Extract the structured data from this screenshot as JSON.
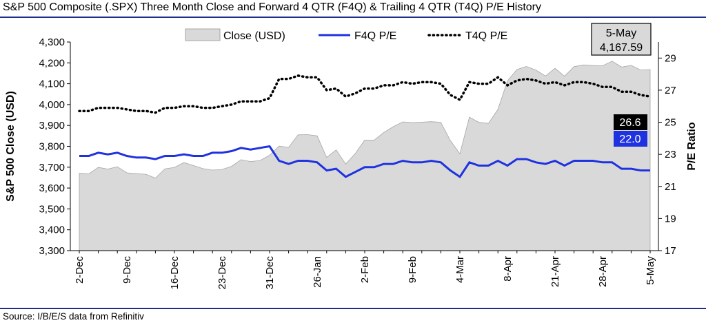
{
  "title": "S&P 500 Composite (.SPX) Three Month Close and Forward 4 QTR (F4Q) & Trailing 4 QTR (T4Q) P/E History",
  "source": "Source: I/B/E/S data from Refinitiv",
  "colors": {
    "area_fill": "#d9d9d9",
    "area_stroke": "#a6a6a6",
    "f4q": "#1f32e0",
    "t4q": "#000000",
    "rule": "#1c2f8f"
  },
  "chart_data": {
    "type": "line",
    "ylabel_left": "S&P 500 Close (USD)",
    "ylabel_right": "P/E Ratio",
    "ylim_left": [
      3300,
      4300
    ],
    "ylim_right": [
      17,
      30
    ],
    "yticks_left": [
      "3,300",
      "3,400",
      "3,500",
      "3,600",
      "3,700",
      "3,800",
      "3,900",
      "4,000",
      "4,100",
      "4,200",
      "4,300"
    ],
    "yticks_right": [
      "17",
      "19",
      "21",
      "23",
      "25",
      "27",
      "29"
    ],
    "xtick_labels": [
      "2-Dec",
      "9-Dec",
      "16-Dec",
      "23-Dec",
      "31-Dec",
      "26-Jan",
      "2-Feb",
      "9-Feb",
      "4-Mar",
      "8-Apr",
      "21-Apr",
      "28-Apr",
      "5-May"
    ],
    "legend": [
      "Close (USD)",
      "F4Q P/E",
      "T4Q P/E"
    ],
    "annotation": {
      "date": "5-May",
      "value": "4,167.59"
    },
    "end_labels": {
      "t4q": "26.6",
      "f4q": "22.0"
    },
    "series": [
      {
        "name": "Close (USD)",
        "kind": "area",
        "values": [
          3671,
          3668,
          3699,
          3691,
          3702,
          3673,
          3669,
          3666,
          3648,
          3692,
          3699,
          3722,
          3708,
          3693,
          3686,
          3689,
          3704,
          3736,
          3727,
          3732,
          3757,
          3801,
          3795,
          3855,
          3856,
          3850,
          3747,
          3783,
          3715,
          3765,
          3830,
          3830,
          3866,
          3894,
          3917,
          3914,
          3916,
          3918,
          3915,
          3828,
          3764,
          3940,
          3915,
          3910,
          3977,
          4114,
          4168,
          4183,
          4165,
          4137,
          4174,
          4136,
          4182,
          4190,
          4187,
          4186,
          4208,
          4180,
          4188,
          4166,
          4168
        ]
      },
      {
        "name": "F4Q P/E",
        "kind": "line",
        "values": [
          22.9,
          22.9,
          23.1,
          23.0,
          23.1,
          22.9,
          22.8,
          22.8,
          22.7,
          22.9,
          22.9,
          23.0,
          22.9,
          22.9,
          23.1,
          23.1,
          23.2,
          23.4,
          23.3,
          23.4,
          23.5,
          22.6,
          22.4,
          22.6,
          22.6,
          22.5,
          22.0,
          22.1,
          21.6,
          21.9,
          22.2,
          22.2,
          22.4,
          22.4,
          22.6,
          22.5,
          22.5,
          22.6,
          22.5,
          22.0,
          21.6,
          22.5,
          22.3,
          22.3,
          22.6,
          22.3,
          22.7,
          22.7,
          22.5,
          22.4,
          22.6,
          22.3,
          22.6,
          22.6,
          22.6,
          22.5,
          22.5,
          22.1,
          22.1,
          22.0,
          22.0
        ]
      },
      {
        "name": "T4Q P/E",
        "kind": "line",
        "values": [
          25.7,
          25.7,
          25.9,
          25.9,
          25.9,
          25.8,
          25.7,
          25.7,
          25.6,
          25.9,
          25.9,
          26.0,
          26.0,
          25.9,
          25.9,
          26.0,
          26.1,
          26.3,
          26.3,
          26.3,
          26.5,
          27.7,
          27.7,
          27.9,
          27.8,
          27.8,
          27.0,
          27.1,
          26.6,
          26.8,
          27.1,
          27.1,
          27.3,
          27.3,
          27.5,
          27.4,
          27.5,
          27.5,
          27.4,
          26.7,
          26.4,
          27.5,
          27.4,
          27.4,
          27.8,
          27.3,
          27.6,
          27.7,
          27.6,
          27.4,
          27.5,
          27.3,
          27.5,
          27.5,
          27.4,
          27.2,
          27.2,
          26.9,
          26.9,
          26.7,
          26.6
        ]
      }
    ]
  }
}
